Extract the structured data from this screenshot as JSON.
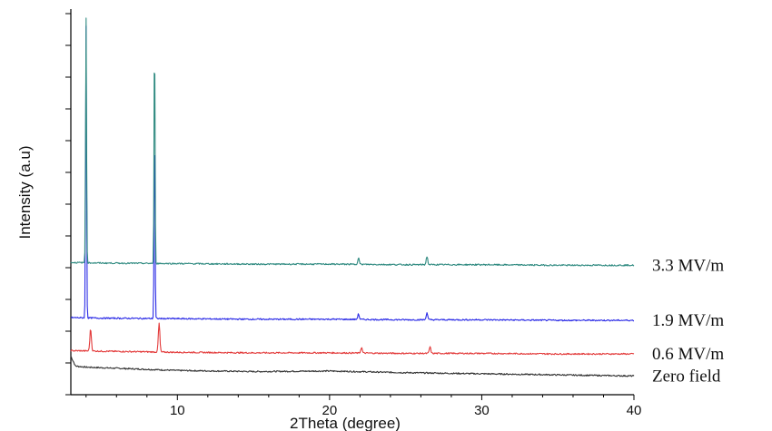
{
  "chart_data": {
    "type": "line",
    "title": "",
    "xlabel": "2Theta (degree)",
    "ylabel": "Intensity (a.u)",
    "xlim": [
      3,
      40
    ],
    "x_ticks": [
      "10",
      "20",
      "30",
      "40"
    ],
    "x_tick_values": [
      10,
      20,
      30,
      40
    ],
    "y_ticks_labeled": false,
    "grid": false,
    "legend": "right-edge labels",
    "series": [
      {
        "name": "Zero field",
        "color": "#333333",
        "baseline": 0.0,
        "peaks": [],
        "x": [
          3.0,
          3.3,
          4,
          6,
          8,
          10,
          15,
          20,
          25,
          30,
          35,
          40
        ],
        "y": [
          0.3,
          0.12,
          0.1,
          0.08,
          0.06,
          0.04,
          0.02,
          0.03,
          0.0,
          -0.02,
          -0.04,
          -0.06
        ]
      },
      {
        "name": "0.6 MV/m",
        "color": "#e33b3b",
        "baseline": 0.4,
        "peaks": [
          {
            "x": 4.3,
            "height": 0.4
          },
          {
            "x": 8.8,
            "height": 0.52
          },
          {
            "x": 22.1,
            "height": 0.1
          },
          {
            "x": 26.6,
            "height": 0.12
          }
        ],
        "x": [
          3.0,
          5,
          10,
          15,
          20,
          25,
          30,
          35,
          40
        ],
        "y": [
          0.4,
          0.39,
          0.37,
          0.36,
          0.36,
          0.35,
          0.35,
          0.34,
          0.34
        ]
      },
      {
        "name": "1.9 MV/m",
        "color": "#2b2be6",
        "baseline": 1.0,
        "peaks": [
          {
            "x": 4.0,
            "height": 5.3
          },
          {
            "x": 8.5,
            "height": 3.6
          },
          {
            "x": 21.9,
            "height": 0.1
          },
          {
            "x": 26.4,
            "height": 0.13
          }
        ],
        "x": [
          3.0,
          5,
          10,
          15,
          20,
          25,
          30,
          35,
          40
        ],
        "y": [
          1.0,
          0.99,
          0.98,
          0.97,
          0.97,
          0.96,
          0.96,
          0.95,
          0.95
        ]
      },
      {
        "name": "3.3 MV/m",
        "color": "#2f8a80",
        "baseline": 2.0,
        "peaks": [
          {
            "x": 4.0,
            "height": 4.45
          },
          {
            "x": 8.5,
            "height": 4.2
          },
          {
            "x": 21.9,
            "height": 0.12
          },
          {
            "x": 26.4,
            "height": 0.15
          }
        ],
        "x": [
          3.0,
          5,
          10,
          15,
          20,
          25,
          30,
          35,
          40
        ],
        "y": [
          2.0,
          1.99,
          1.98,
          1.97,
          1.97,
          1.96,
          1.96,
          1.95,
          1.95
        ]
      }
    ],
    "ylim": [
      -0.4,
      6.6
    ],
    "y_minor_tick_count": 12
  }
}
